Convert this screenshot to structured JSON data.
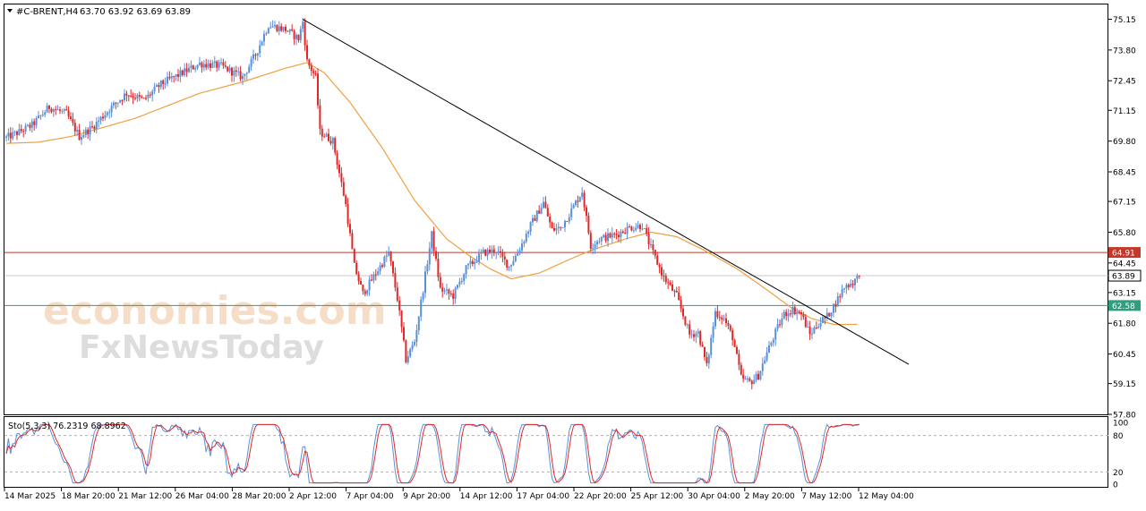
{
  "header": {
    "symbol_timeframe": "#C-BRENT,H4",
    "ohlc": "63.70 63.92 63.69 63.89"
  },
  "watermark": {
    "line1": "economies.com",
    "line2": "FxNewsToday"
  },
  "colors": {
    "bull": "#5b8fd8",
    "bear": "#e02828",
    "ma": "#f0a040",
    "resistance": "#c0392b",
    "support": "#2e9e7e",
    "trendline": "#000000",
    "stoch_main": "#5b8fd8",
    "stoch_signal": "#e02828"
  },
  "chart_data": [
    {
      "type": "candlestick",
      "title": "#C-BRENT,H4",
      "ylim": [
        57.8,
        75.8
      ],
      "y_ticks": [
        "75.15",
        "73.80",
        "72.45",
        "71.15",
        "69.80",
        "68.45",
        "67.15",
        "65.80",
        "64.45",
        "63.15",
        "61.80",
        "60.45",
        "59.15",
        "57.80"
      ],
      "x_ticks": [
        "14 Mar 2025",
        "18 Mar 20:00",
        "21 Mar 12:00",
        "26 Mar 04:00",
        "28 Mar 20:00",
        "2 Apr 12:00",
        "7 Apr 04:00",
        "9 Apr 20:00",
        "14 Apr 12:00",
        "17 Apr 04:00",
        "22 Apr 20:00",
        "25 Apr 12:00",
        "30 Apr 04:00",
        "2 May 20:00",
        "7 May 12:00",
        "12 May 04:00"
      ],
      "price_path": [
        [
          0,
          69.95
        ],
        [
          6,
          70.2
        ],
        [
          12,
          70.5
        ],
        [
          20,
          71.3
        ],
        [
          28,
          71.0
        ],
        [
          34,
          70.0
        ],
        [
          40,
          70.4
        ],
        [
          48,
          71.2
        ],
        [
          56,
          71.9
        ],
        [
          64,
          71.6
        ],
        [
          72,
          72.3
        ],
        [
          82,
          72.8
        ],
        [
          90,
          73.2
        ],
        [
          100,
          73.1
        ],
        [
          110,
          72.6
        ],
        [
          116,
          73.6
        ],
        [
          122,
          74.9
        ],
        [
          130,
          74.7
        ],
        [
          136,
          74.3
        ],
        [
          138,
          75.05
        ],
        [
          140,
          73.3
        ],
        [
          144,
          72.6
        ],
        [
          146,
          70.2
        ],
        [
          152,
          69.8
        ],
        [
          158,
          67.0
        ],
        [
          162,
          64.3
        ],
        [
          166,
          63.1
        ],
        [
          172,
          64.0
        ],
        [
          178,
          64.9
        ],
        [
          182,
          62.9
        ],
        [
          186,
          60.2
        ],
        [
          190,
          61.0
        ],
        [
          194,
          63.3
        ],
        [
          198,
          65.7
        ],
        [
          202,
          63.3
        ],
        [
          208,
          63.0
        ],
        [
          214,
          64.2
        ],
        [
          222,
          64.9
        ],
        [
          228,
          65.0
        ],
        [
          234,
          64.3
        ],
        [
          238,
          64.9
        ],
        [
          244,
          66.1
        ],
        [
          250,
          67.1
        ],
        [
          254,
          65.9
        ],
        [
          258,
          66.0
        ],
        [
          262,
          66.6
        ],
        [
          268,
          67.6
        ],
        [
          272,
          65.2
        ],
        [
          276,
          65.5
        ],
        [
          284,
          65.7
        ],
        [
          290,
          66.0
        ],
        [
          296,
          66.1
        ],
        [
          300,
          65.1
        ],
        [
          306,
          63.8
        ],
        [
          312,
          63.0
        ],
        [
          318,
          61.3
        ],
        [
          322,
          61.4
        ],
        [
          326,
          59.9
        ],
        [
          330,
          62.3
        ],
        [
          334,
          62.0
        ],
        [
          338,
          61.2
        ],
        [
          342,
          59.4
        ],
        [
          346,
          59.2
        ],
        [
          350,
          59.5
        ],
        [
          354,
          60.5
        ],
        [
          358,
          61.4
        ],
        [
          362,
          62.2
        ],
        [
          366,
          62.4
        ],
        [
          370,
          62.2
        ],
        [
          374,
          61.3
        ],
        [
          378,
          61.8
        ],
        [
          382,
          62.1
        ],
        [
          386,
          62.7
        ],
        [
          390,
          63.4
        ],
        [
          394,
          63.6
        ],
        [
          397,
          63.89
        ]
      ],
      "bar_count": 398,
      "last_price": 63.89,
      "moving_average": [
        [
          0,
          69.7
        ],
        [
          15,
          69.75
        ],
        [
          30,
          70.0
        ],
        [
          60,
          70.8
        ],
        [
          90,
          71.9
        ],
        [
          110,
          72.4
        ],
        [
          130,
          73.0
        ],
        [
          140,
          73.25
        ],
        [
          148,
          72.8
        ],
        [
          160,
          71.5
        ],
        [
          175,
          69.5
        ],
        [
          190,
          67.2
        ],
        [
          205,
          65.5
        ],
        [
          215,
          64.8
        ],
        [
          225,
          64.2
        ],
        [
          235,
          63.75
        ],
        [
          248,
          64.0
        ],
        [
          262,
          64.6
        ],
        [
          272,
          65.0
        ],
        [
          288,
          65.5
        ],
        [
          300,
          65.8
        ],
        [
          312,
          65.6
        ],
        [
          325,
          65.0
        ],
        [
          340,
          64.2
        ],
        [
          355,
          63.2
        ],
        [
          365,
          62.5
        ],
        [
          375,
          62.0
        ],
        [
          385,
          61.75
        ],
        [
          396,
          61.75
        ]
      ],
      "trendline": {
        "start": [
          138,
          75.15
        ],
        "end": [
          420,
          60.0
        ]
      },
      "horizontal_levels": [
        {
          "name": "resistance",
          "value": 64.91,
          "label": "64.91"
        },
        {
          "name": "support",
          "value": 62.58,
          "label": "62.58"
        }
      ]
    },
    {
      "type": "line",
      "title": "Sto(5,3,3) 76.2319 68.8962",
      "ylim": [
        0,
        100
      ],
      "y_ticks": [
        "100",
        "80",
        "20",
        "0"
      ],
      "levels": [
        20,
        80
      ],
      "series": [
        {
          "name": "main",
          "value": 76.2319
        },
        {
          "name": "signal",
          "value": 68.8962
        }
      ]
    }
  ]
}
